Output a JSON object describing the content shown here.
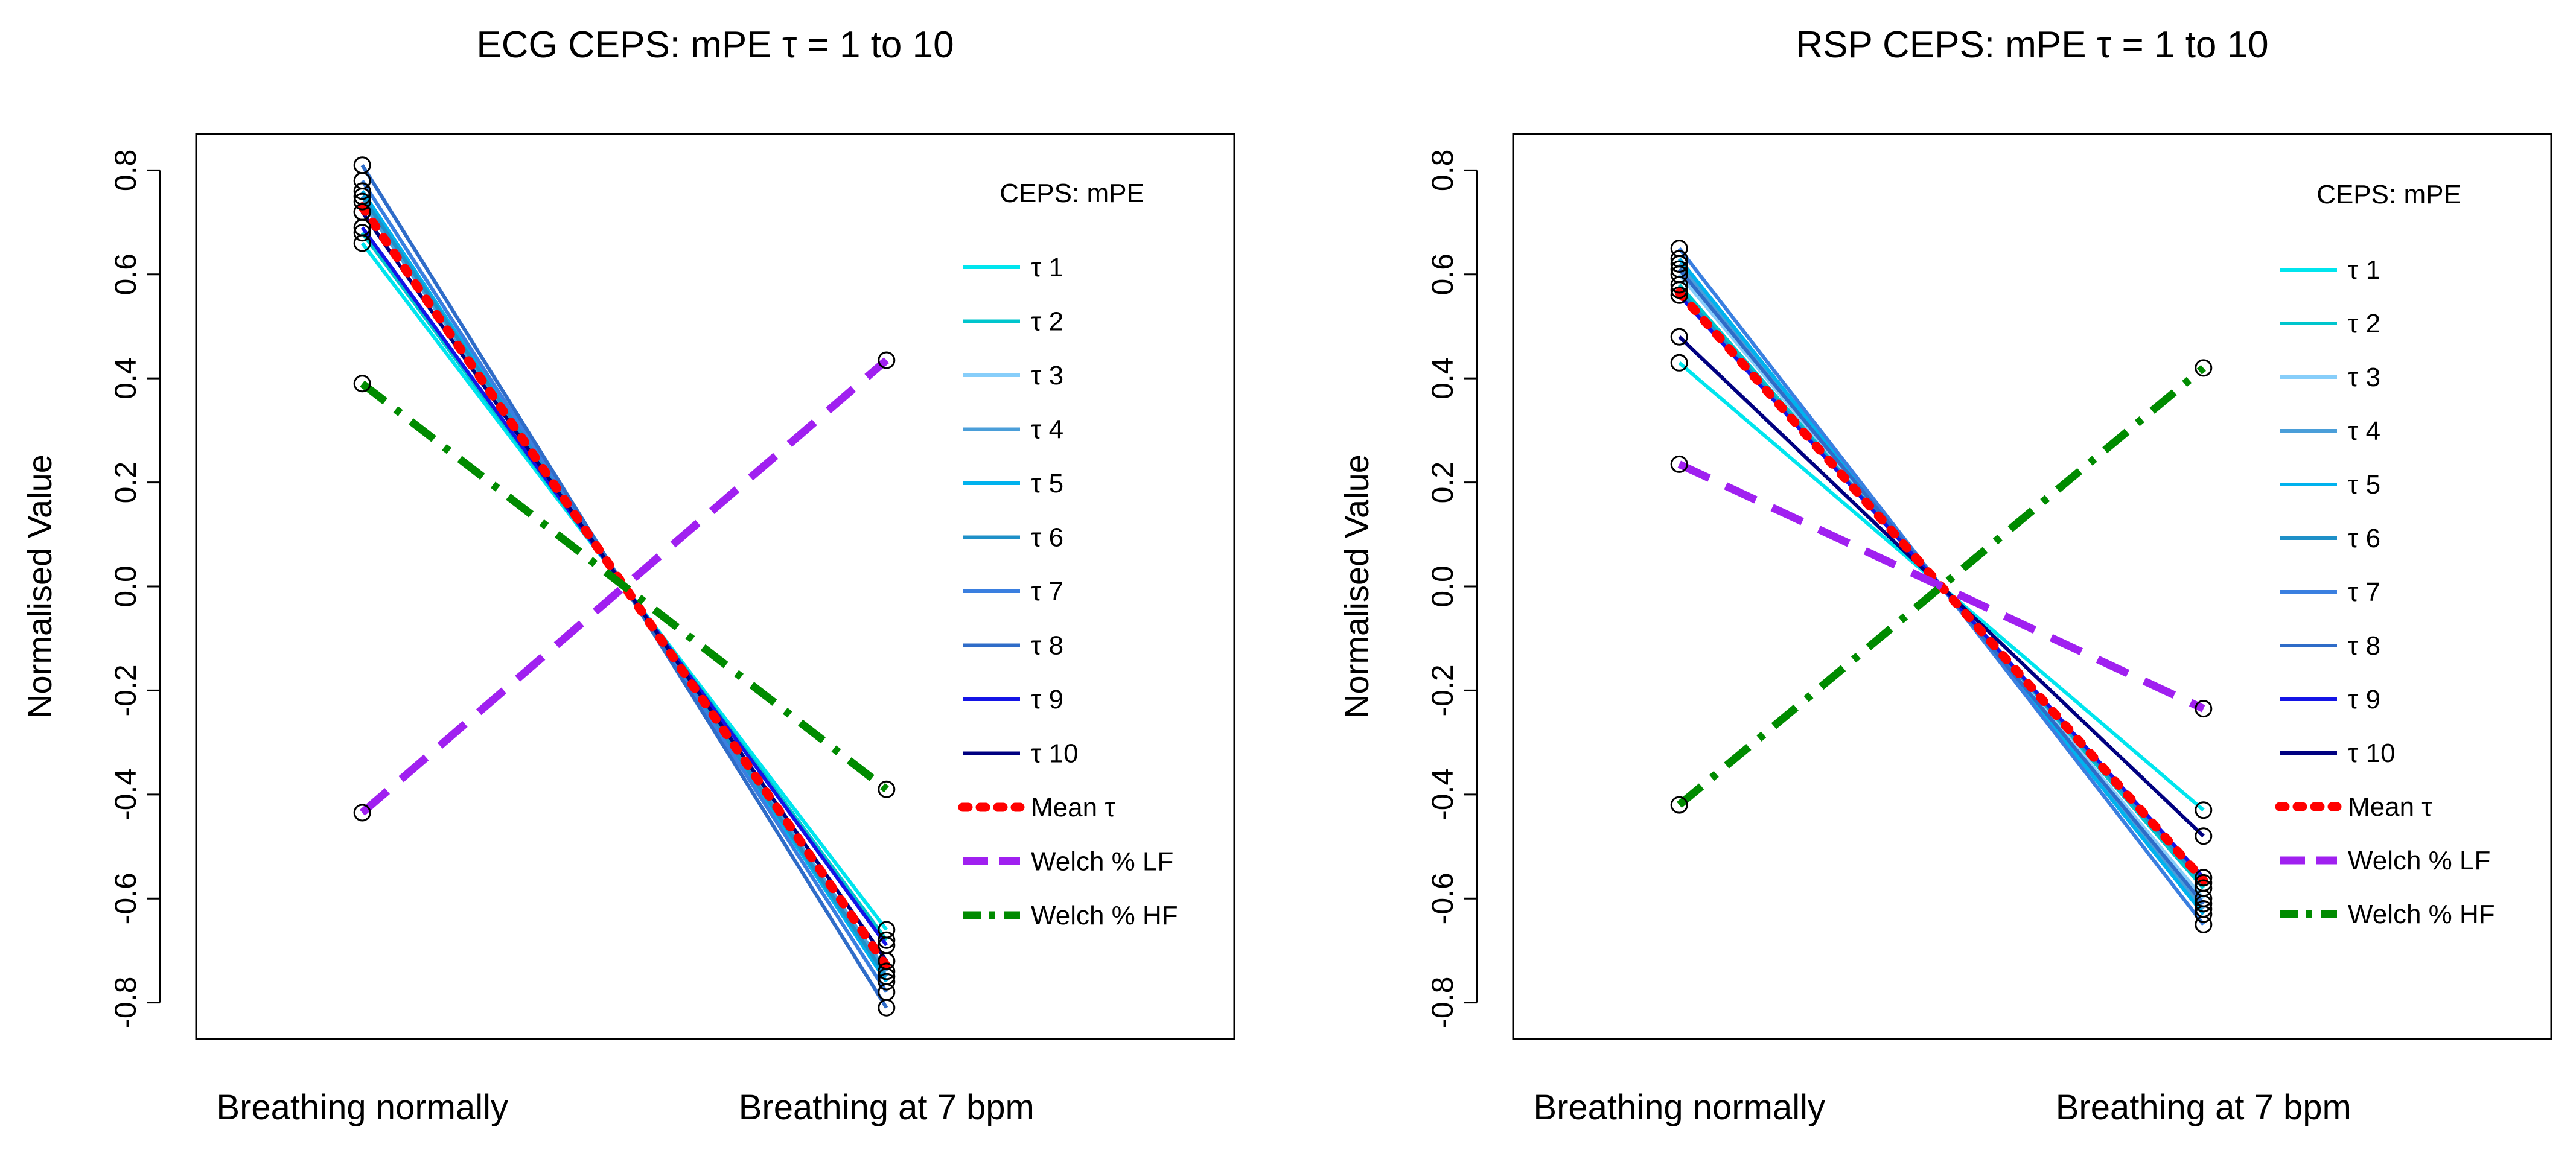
{
  "chart_data": [
    {
      "type": "line",
      "title": "ECG CEPS: mPE τ = 1 to 10",
      "xlabel": "",
      "ylabel": "Normalised Value",
      "categories": [
        "Breathing normally",
        "Breathing at 7 bpm"
      ],
      "ylim": [
        -0.87,
        0.87
      ],
      "yticks": [
        "0.8",
        "0.6",
        "0.4",
        "0.2",
        "0.0",
        "-0.2",
        "-0.4",
        "-0.6",
        "-0.8"
      ],
      "legend": {
        "title": "CEPS: mPE",
        "position": "top-right"
      },
      "series": [
        {
          "name": "τ 1",
          "color": "#00E5EE",
          "dash": "solid",
          "values": [
            0.66,
            -0.66
          ]
        },
        {
          "name": "τ 2",
          "color": "#00C5CD",
          "dash": "solid",
          "values": [
            0.68,
            -0.68
          ]
        },
        {
          "name": "τ 3",
          "color": "#87CEFA",
          "dash": "solid",
          "values": [
            0.72,
            -0.72
          ]
        },
        {
          "name": "τ 4",
          "color": "#4A9ED9",
          "dash": "solid",
          "values": [
            0.74,
            -0.74
          ]
        },
        {
          "name": "τ 5",
          "color": "#00B2EE",
          "dash": "solid",
          "values": [
            0.76,
            -0.76
          ]
        },
        {
          "name": "τ 6",
          "color": "#1E90C8",
          "dash": "solid",
          "values": [
            0.75,
            -0.75
          ]
        },
        {
          "name": "τ 7",
          "color": "#3A7FE0",
          "dash": "solid",
          "values": [
            0.78,
            -0.78
          ]
        },
        {
          "name": "τ 8",
          "color": "#2F6CC8",
          "dash": "solid",
          "values": [
            0.81,
            -0.81
          ]
        },
        {
          "name": "τ 9",
          "color": "#1414E6",
          "dash": "solid",
          "values": [
            0.69,
            -0.69
          ]
        },
        {
          "name": "τ 10",
          "color": "#000080",
          "dash": "solid",
          "values": [
            0.72,
            -0.72
          ]
        },
        {
          "name": "Mean τ",
          "color": "#FF0000",
          "dash": "dotted",
          "values": [
            0.73,
            -0.73
          ]
        },
        {
          "name": "Welch % LF",
          "color": "#A020F0",
          "dash": "dashed",
          "values": [
            -0.435,
            0.435
          ]
        },
        {
          "name": "Welch % HF",
          "color": "#008B00",
          "dash": "dotdash",
          "values": [
            0.39,
            -0.39
          ]
        }
      ]
    },
    {
      "type": "line",
      "title": "RSP CEPS: mPE τ = 1 to 10",
      "xlabel": "",
      "ylabel": "Normalised Value",
      "categories": [
        "Breathing normally",
        "Breathing at 7 bpm"
      ],
      "ylim": [
        -0.87,
        0.87
      ],
      "yticks": [
        "0.8",
        "0.6",
        "0.4",
        "0.2",
        "0.0",
        "-0.2",
        "-0.4",
        "-0.6",
        "-0.8"
      ],
      "legend": {
        "title": "CEPS: mPE",
        "position": "top-right"
      },
      "series": [
        {
          "name": "τ 1",
          "color": "#00E5EE",
          "dash": "solid",
          "values": [
            0.43,
            -0.43
          ]
        },
        {
          "name": "τ 2",
          "color": "#00C5CD",
          "dash": "solid",
          "values": [
            0.58,
            -0.58
          ]
        },
        {
          "name": "τ 3",
          "color": "#87CEFA",
          "dash": "solid",
          "values": [
            0.6,
            -0.6
          ]
        },
        {
          "name": "τ 4",
          "color": "#4A9ED9",
          "dash": "solid",
          "values": [
            0.62,
            -0.62
          ]
        },
        {
          "name": "τ 5",
          "color": "#00B2EE",
          "dash": "solid",
          "values": [
            0.63,
            -0.63
          ]
        },
        {
          "name": "τ 6",
          "color": "#1E90C8",
          "dash": "solid",
          "values": [
            0.57,
            -0.57
          ]
        },
        {
          "name": "τ 7",
          "color": "#3A7FE0",
          "dash": "solid",
          "values": [
            0.65,
            -0.65
          ]
        },
        {
          "name": "τ 8",
          "color": "#2F6CC8",
          "dash": "solid",
          "values": [
            0.61,
            -0.61
          ]
        },
        {
          "name": "τ 9",
          "color": "#1414E6",
          "dash": "solid",
          "values": [
            0.56,
            -0.56
          ]
        },
        {
          "name": "τ 10",
          "color": "#000080",
          "dash": "solid",
          "values": [
            0.48,
            -0.48
          ]
        },
        {
          "name": "Mean τ",
          "color": "#FF0000",
          "dash": "dotted",
          "values": [
            0.565,
            -0.565
          ]
        },
        {
          "name": "Welch % LF",
          "color": "#A020F0",
          "dash": "dashed",
          "values": [
            0.235,
            -0.235
          ]
        },
        {
          "name": "Welch % HF",
          "color": "#008B00",
          "dash": "dotdash",
          "values": [
            -0.42,
            0.42
          ]
        }
      ]
    }
  ]
}
